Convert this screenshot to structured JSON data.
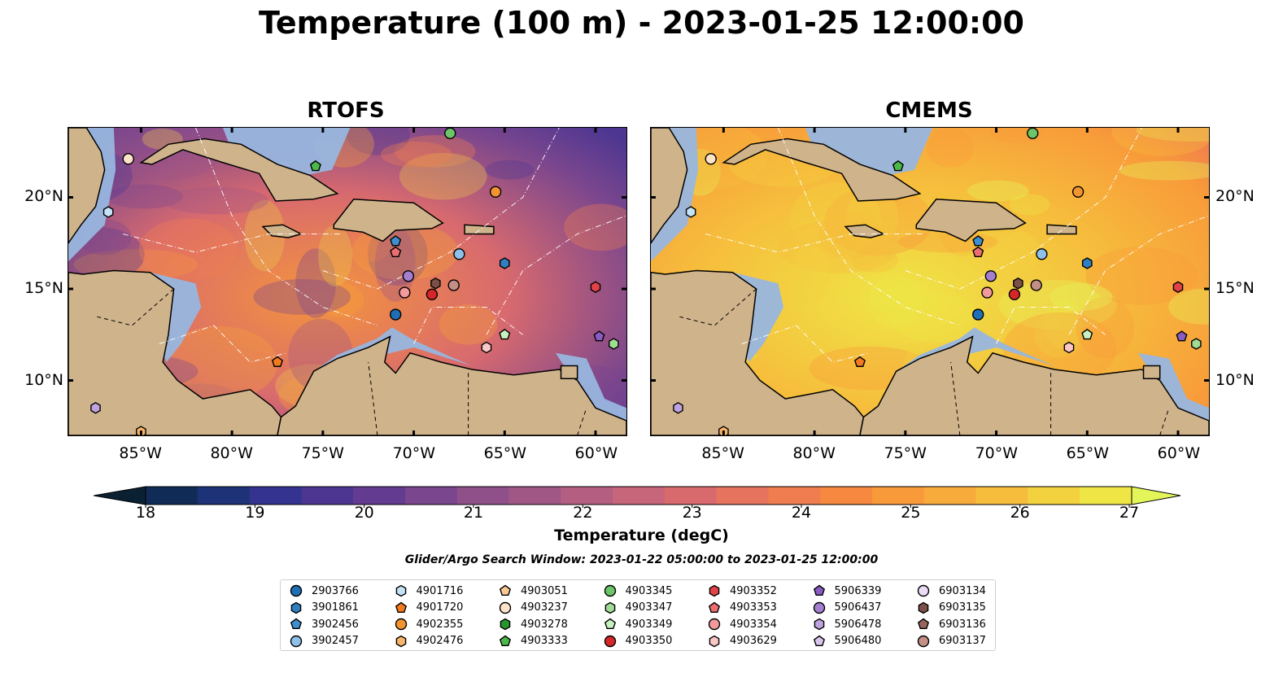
{
  "title": "Temperature (100 m) - 2023-01-25 12:00:00",
  "panels": [
    {
      "name": "RTOFS"
    },
    {
      "name": "CMEMS"
    }
  ],
  "axes": {
    "x_ticks": [
      "85°W",
      "80°W",
      "75°W",
      "70°W",
      "65°W",
      "60°W"
    ],
    "x_values": [
      -85,
      -80,
      -75,
      -70,
      -65,
      -60
    ],
    "y_ticks": [
      "20°N",
      "15°N",
      "10°N"
    ],
    "y_values": [
      20,
      15,
      10
    ],
    "lon_range": [
      -89,
      -58.3
    ],
    "lat_range": [
      7,
      23.8
    ]
  },
  "colorbar": {
    "label": "Temperature (degC)",
    "ticks": [
      "18",
      "19",
      "20",
      "21",
      "22",
      "23",
      "24",
      "25",
      "26",
      "27"
    ],
    "range": [
      18,
      27
    ],
    "colors": [
      "#0a2134",
      "#102c56",
      "#1e3277",
      "#343390",
      "#4c3691",
      "#633b90",
      "#7a468e",
      "#8f5089",
      "#a15786",
      "#b45f82",
      "#c7657b",
      "#d86a6e",
      "#e6735e",
      "#f07d4f",
      "#f6893f",
      "#f89a3a",
      "#f7ab3b",
      "#f6bd3c",
      "#f3d23f",
      "#efe646",
      "#e4f55a"
    ]
  },
  "search_window": "Glider/Argo Search Window: 2023-01-22 05:00:00 to 2023-01-25 12:00:00",
  "legend": [
    {
      "label": "2903766",
      "marker": "circle",
      "color": "#1f6fb4"
    },
    {
      "label": "3901861",
      "marker": "hexagon",
      "color": "#2f7fc1"
    },
    {
      "label": "3902456",
      "marker": "pentagon",
      "color": "#3d8fd1"
    },
    {
      "label": "3902457",
      "marker": "circle",
      "color": "#8fc0ea"
    },
    {
      "label": "4901716",
      "marker": "hexagon",
      "color": "#c5e3f7"
    },
    {
      "label": "4901720",
      "marker": "pentagon",
      "color": "#f47a1f"
    },
    {
      "label": "4902355",
      "marker": "circle",
      "color": "#f39433"
    },
    {
      "label": "4902476",
      "marker": "hexagon",
      "color": "#f7b46a"
    },
    {
      "label": "4903051",
      "marker": "pentagon",
      "color": "#fbc893"
    },
    {
      "label": "4903237",
      "marker": "circle",
      "color": "#fde3c8"
    },
    {
      "label": "4903278",
      "marker": "hexagon",
      "color": "#27962e"
    },
    {
      "label": "4903333",
      "marker": "pentagon",
      "color": "#4db84a"
    },
    {
      "label": "4903345",
      "marker": "circle",
      "color": "#6cc567"
    },
    {
      "label": "4903347",
      "marker": "hexagon",
      "color": "#9fdc94"
    },
    {
      "label": "4903349",
      "marker": "pentagon",
      "color": "#c8f0c0"
    },
    {
      "label": "4903350",
      "marker": "circle",
      "color": "#d62728"
    },
    {
      "label": "4903352",
      "marker": "hexagon",
      "color": "#e04247"
    },
    {
      "label": "4903353",
      "marker": "pentagon",
      "color": "#ec6e72"
    },
    {
      "label": "4903354",
      "marker": "circle",
      "color": "#f39a9c"
    },
    {
      "label": "4903629",
      "marker": "hexagon",
      "color": "#fbc7c6"
    },
    {
      "label": "5906339",
      "marker": "pentagon",
      "color": "#8a5bc1"
    },
    {
      "label": "5906437",
      "marker": "circle",
      "color": "#a47fd0"
    },
    {
      "label": "5906478",
      "marker": "hexagon",
      "color": "#bea3de"
    },
    {
      "label": "5906480",
      "marker": "pentagon",
      "color": "#d8c6ef"
    },
    {
      "label": "6903134",
      "marker": "circle",
      "color": "#ecdcf7"
    },
    {
      "label": "6903135",
      "marker": "hexagon",
      "color": "#7b5048"
    },
    {
      "label": "6903136",
      "marker": "pentagon",
      "color": "#97655c"
    },
    {
      "label": "6903137",
      "marker": "circle",
      "color": "#c48f87"
    }
  ],
  "floats": [
    {
      "id": "2903766",
      "lon": -71,
      "lat": 13.6
    },
    {
      "id": "3901861",
      "lon": -65,
      "lat": 16.4
    },
    {
      "id": "3902456",
      "lon": -71,
      "lat": 17.6
    },
    {
      "id": "3902457",
      "lon": -67.5,
      "lat": 16.9
    },
    {
      "id": "4901716",
      "lon": -86.8,
      "lat": 19.2
    },
    {
      "id": "4901720",
      "lon": -77.5,
      "lat": 11.0
    },
    {
      "id": "4902355",
      "lon": -65.5,
      "lat": 20.3
    },
    {
      "id": "4902476",
      "lon": -85,
      "lat": 7.2
    },
    {
      "id": "4903237",
      "lon": -85.7,
      "lat": 22.1
    },
    {
      "id": "4903333",
      "lon": -75.4,
      "lat": 21.7
    },
    {
      "id": "4903345",
      "lon": -68,
      "lat": 23.5
    },
    {
      "id": "4903349",
      "lon": -65,
      "lat": 12.5
    },
    {
      "id": "4903350",
      "lon": -69,
      "lat": 14.7
    },
    {
      "id": "4903352",
      "lon": -60,
      "lat": 15.1
    },
    {
      "id": "4903353",
      "lon": -71,
      "lat": 17.0
    },
    {
      "id": "4903354",
      "lon": -70.5,
      "lat": 14.8
    },
    {
      "id": "4903629",
      "lon": -66,
      "lat": 11.8
    },
    {
      "id": "5906339",
      "lon": -59.8,
      "lat": 12.4
    },
    {
      "id": "5906437",
      "lon": -70.3,
      "lat": 15.7
    },
    {
      "id": "5906478",
      "lon": -87.5,
      "lat": 8.5
    },
    {
      "id": "6903135",
      "lon": -68.8,
      "lat": 15.3
    },
    {
      "id": "6903137",
      "lon": -67.8,
      "lat": 15.2
    },
    {
      "id": "4903347",
      "lon": -59,
      "lat": 12.0
    }
  ]
}
